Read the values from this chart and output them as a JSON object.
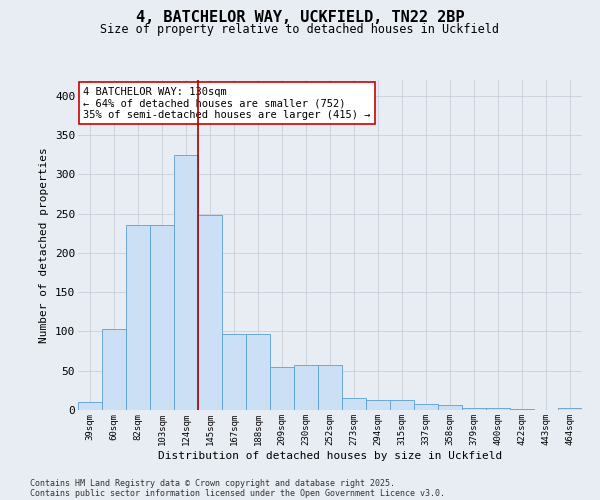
{
  "title_line1": "4, BATCHELOR WAY, UCKFIELD, TN22 2BP",
  "title_line2": "Size of property relative to detached houses in Uckfield",
  "xlabel": "Distribution of detached houses by size in Uckfield",
  "ylabel": "Number of detached properties",
  "categories": [
    "39sqm",
    "60sqm",
    "82sqm",
    "103sqm",
    "124sqm",
    "145sqm",
    "167sqm",
    "188sqm",
    "209sqm",
    "230sqm",
    "252sqm",
    "273sqm",
    "294sqm",
    "315sqm",
    "337sqm",
    "358sqm",
    "379sqm",
    "400sqm",
    "422sqm",
    "443sqm",
    "464sqm"
  ],
  "values": [
    10,
    103,
    235,
    235,
    325,
    248,
    97,
    97,
    55,
    57,
    57,
    15,
    13,
    13,
    8,
    7,
    3,
    2,
    1,
    0,
    2
  ],
  "bar_color": "#cce0f5",
  "bar_edge_color": "#5a9fd4",
  "grid_color": "#c8d0dc",
  "background_color": "#e8edf4",
  "vline_x_index": 4.5,
  "vline_color": "#aa0000",
  "annotation_text": "4 BATCHELOR WAY: 130sqm\n← 64% of detached houses are smaller (752)\n35% of semi-detached houses are larger (415) →",
  "annotation_box_color": "#ffffff",
  "annotation_box_edge": "#cc0000",
  "ylim": [
    0,
    420
  ],
  "yticks": [
    0,
    50,
    100,
    150,
    200,
    250,
    300,
    350,
    400
  ],
  "footer_line1": "Contains HM Land Registry data © Crown copyright and database right 2025.",
  "footer_line2": "Contains public sector information licensed under the Open Government Licence v3.0."
}
